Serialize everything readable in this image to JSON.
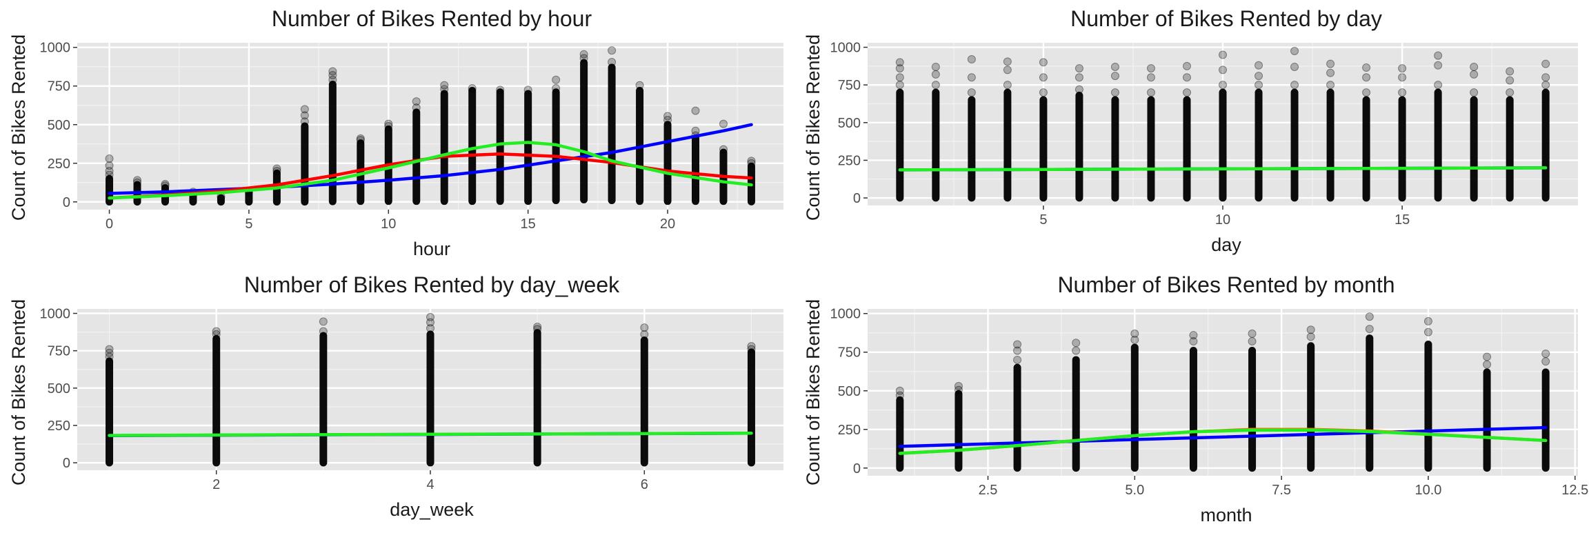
{
  "chart_data": [
    {
      "type": "scatter",
      "title": "Number of Bikes Rented by hour",
      "xlabel": "hour",
      "ylabel": "Count of Bikes Rented",
      "xlim": [
        -1.15,
        24.15
      ],
      "ylim": [
        -50,
        1030
      ],
      "x_ticks": [
        0,
        5,
        10,
        15,
        20
      ],
      "x_tick_labels": [
        "0",
        "5",
        "10",
        "15",
        "20"
      ],
      "y_ticks": [
        0,
        250,
        500,
        750,
        1000
      ],
      "y_tick_labels": [
        "0",
        "250",
        "500",
        "750",
        "1000"
      ],
      "grid": true,
      "background": "#e5e5e5",
      "point_color": "#000000",
      "point_opacity": 0.25,
      "columns": [
        {
          "x": 0,
          "low": 1,
          "high": 150,
          "outliers": [
            175,
            200,
            235,
            280
          ]
        },
        {
          "x": 1,
          "low": 1,
          "high": 110,
          "outliers": [
            125,
            140
          ]
        },
        {
          "x": 2,
          "low": 1,
          "high": 90,
          "outliers": [
            105,
            115
          ]
        },
        {
          "x": 3,
          "low": 1,
          "high": 55,
          "outliers": [
            65
          ]
        },
        {
          "x": 4,
          "low": 1,
          "high": 25,
          "outliers": [
            35
          ]
        },
        {
          "x": 5,
          "low": 1,
          "high": 55,
          "outliers": [
            65
          ]
        },
        {
          "x": 6,
          "low": 1,
          "high": 185,
          "outliers": [
            200,
            215
          ]
        },
        {
          "x": 7,
          "low": 1,
          "high": 490,
          "outliers": [
            520,
            560,
            600
          ]
        },
        {
          "x": 8,
          "low": 3,
          "high": 760,
          "outliers": [
            790,
            820,
            845
          ]
        },
        {
          "x": 9,
          "low": 5,
          "high": 380,
          "outliers": [
            400,
            410
          ]
        },
        {
          "x": 10,
          "low": 5,
          "high": 470,
          "outliers": [
            490,
            505
          ]
        },
        {
          "x": 11,
          "low": 5,
          "high": 580,
          "outliers": [
            610,
            650
          ]
        },
        {
          "x": 12,
          "low": 5,
          "high": 700,
          "outliers": [
            730,
            755
          ]
        },
        {
          "x": 13,
          "low": 5,
          "high": 720,
          "outliers": [
            735
          ]
        },
        {
          "x": 14,
          "low": 5,
          "high": 710,
          "outliers": [
            725
          ]
        },
        {
          "x": 15,
          "low": 5,
          "high": 700,
          "outliers": [
            725
          ]
        },
        {
          "x": 16,
          "low": 10,
          "high": 710,
          "outliers": [
            735,
            790
          ]
        },
        {
          "x": 17,
          "low": 15,
          "high": 900,
          "outliers": [
            930,
            955
          ]
        },
        {
          "x": 18,
          "low": 10,
          "high": 870,
          "outliers": [
            905,
            980
          ]
        },
        {
          "x": 19,
          "low": 5,
          "high": 720,
          "outliers": [
            755
          ]
        },
        {
          "x": 20,
          "low": 5,
          "high": 500,
          "outliers": [
            530,
            555
          ]
        },
        {
          "x": 21,
          "low": 5,
          "high": 410,
          "outliers": [
            430,
            460,
            590
          ]
        },
        {
          "x": 22,
          "low": 5,
          "high": 320,
          "outliers": [
            340,
            505
          ]
        },
        {
          "x": 23,
          "low": 2,
          "high": 230,
          "outliers": [
            250,
            265
          ]
        }
      ],
      "smooth_lines": [
        {
          "color": "#0000ff",
          "x": [
            0,
            2,
            4,
            6,
            8,
            10,
            12,
            14,
            16,
            18,
            20,
            22,
            23
          ],
          "y": [
            55,
            65,
            80,
            95,
            115,
            140,
            170,
            210,
            265,
            320,
            390,
            460,
            500
          ]
        },
        {
          "color": "#ff0000",
          "x": [
            0,
            2,
            4,
            6,
            8,
            10,
            12,
            14,
            16,
            18,
            20,
            22,
            23
          ],
          "y": [
            25,
            45,
            70,
            110,
            170,
            240,
            295,
            310,
            295,
            255,
            200,
            165,
            155
          ]
        },
        {
          "color": "#22ee22",
          "x": [
            0,
            2,
            4,
            6,
            8,
            10,
            12,
            13,
            14,
            15,
            16,
            17,
            18,
            20,
            22,
            23
          ],
          "y": [
            25,
            40,
            60,
            90,
            140,
            220,
            305,
            345,
            375,
            385,
            370,
            325,
            265,
            185,
            130,
            110
          ]
        }
      ]
    },
    {
      "type": "scatter",
      "title": "Number of Bikes Rented by day",
      "xlabel": "day",
      "ylabel": "Count of Bikes Rented",
      "xlim": [
        0.1,
        19.9
      ],
      "ylim": [
        -50,
        1030
      ],
      "x_ticks": [
        5,
        10,
        15
      ],
      "x_tick_labels": [
        "5",
        "10",
        "15"
      ],
      "y_ticks": [
        0,
        250,
        500,
        750,
        1000
      ],
      "y_tick_labels": [
        "0",
        "250",
        "500",
        "750",
        "1000"
      ],
      "grid": true,
      "background": "#e5e5e5",
      "point_color": "#000000",
      "point_opacity": 0.25,
      "columns": [
        {
          "x": 1,
          "low": 1,
          "high": 700,
          "outliers": [
            750,
            800,
            860,
            900
          ]
        },
        {
          "x": 2,
          "low": 1,
          "high": 700,
          "outliers": [
            750,
            820,
            870
          ]
        },
        {
          "x": 3,
          "low": 1,
          "high": 650,
          "outliers": [
            700,
            800,
            920
          ]
        },
        {
          "x": 4,
          "low": 1,
          "high": 700,
          "outliers": [
            750,
            850,
            905
          ]
        },
        {
          "x": 5,
          "low": 1,
          "high": 650,
          "outliers": [
            700,
            800,
            900
          ]
        },
        {
          "x": 6,
          "low": 1,
          "high": 680,
          "outliers": [
            720,
            800,
            860
          ]
        },
        {
          "x": 7,
          "low": 1,
          "high": 650,
          "outliers": [
            700,
            810,
            870
          ]
        },
        {
          "x": 8,
          "low": 1,
          "high": 650,
          "outliers": [
            700,
            800,
            860
          ]
        },
        {
          "x": 9,
          "low": 1,
          "high": 650,
          "outliers": [
            700,
            800,
            875
          ]
        },
        {
          "x": 10,
          "low": 1,
          "high": 700,
          "outliers": [
            750,
            850,
            950
          ]
        },
        {
          "x": 11,
          "low": 1,
          "high": 700,
          "outliers": [
            750,
            810,
            880
          ]
        },
        {
          "x": 12,
          "low": 1,
          "high": 700,
          "outliers": [
            750,
            870,
            975
          ]
        },
        {
          "x": 13,
          "low": 1,
          "high": 700,
          "outliers": [
            750,
            830,
            890
          ]
        },
        {
          "x": 14,
          "low": 1,
          "high": 650,
          "outliers": [
            700,
            800,
            865
          ]
        },
        {
          "x": 15,
          "low": 1,
          "high": 650,
          "outliers": [
            700,
            800,
            860
          ]
        },
        {
          "x": 16,
          "low": 1,
          "high": 700,
          "outliers": [
            750,
            880,
            945
          ]
        },
        {
          "x": 17,
          "low": 1,
          "high": 650,
          "outliers": [
            700,
            820,
            870
          ]
        },
        {
          "x": 18,
          "low": 1,
          "high": 650,
          "outliers": [
            700,
            780,
            840
          ]
        },
        {
          "x": 19,
          "low": 1,
          "high": 700,
          "outliers": [
            750,
            800,
            890
          ]
        }
      ],
      "smooth_lines": [
        {
          "color": "#0000ff",
          "x": [
            1,
            19
          ],
          "y": [
            186,
            200
          ]
        },
        {
          "color": "#22ee22",
          "x": [
            1,
            10,
            19
          ],
          "y": [
            186,
            193,
            200
          ]
        }
      ]
    },
    {
      "type": "scatter",
      "title": "Number of Bikes Rented by day_week",
      "xlabel": "day_week",
      "ylabel": "Count of Bikes Rented",
      "xlim": [
        0.7,
        7.3
      ],
      "ylim": [
        -50,
        1030
      ],
      "x_ticks": [
        2,
        4,
        6
      ],
      "x_tick_labels": [
        "2",
        "4",
        "6"
      ],
      "y_ticks": [
        0,
        250,
        500,
        750,
        1000
      ],
      "y_tick_labels": [
        "0",
        "250",
        "500",
        "750",
        "1000"
      ],
      "grid": true,
      "background": "#e5e5e5",
      "point_color": "#000000",
      "point_opacity": 0.25,
      "columns": [
        {
          "x": 1,
          "low": 1,
          "high": 680,
          "outliers": [
            710,
            735,
            760
          ]
        },
        {
          "x": 2,
          "low": 1,
          "high": 830,
          "outliers": [
            860,
            880
          ]
        },
        {
          "x": 3,
          "low": 1,
          "high": 850,
          "outliers": [
            880,
            945
          ]
        },
        {
          "x": 4,
          "low": 1,
          "high": 860,
          "outliers": [
            900,
            940,
            975
          ]
        },
        {
          "x": 5,
          "low": 1,
          "high": 870,
          "outliers": [
            895,
            910
          ]
        },
        {
          "x": 6,
          "low": 1,
          "high": 820,
          "outliers": [
            860,
            905
          ]
        },
        {
          "x": 7,
          "low": 1,
          "high": 740,
          "outliers": [
            760,
            780
          ]
        }
      ],
      "smooth_lines": [
        {
          "color": "#0000ff",
          "x": [
            1,
            7
          ],
          "y": [
            182,
            198
          ]
        },
        {
          "color": "#22ee22",
          "x": [
            1,
            4,
            7
          ],
          "y": [
            183,
            191,
            198
          ]
        }
      ]
    },
    {
      "type": "scatter",
      "title": "Number of Bikes Rented by month",
      "xlabel": "month",
      "ylabel": "Count of Bikes Rented",
      "xlim": [
        0.45,
        12.55
      ],
      "ylim": [
        -50,
        1030
      ],
      "x_ticks": [
        2.5,
        5,
        7.5,
        10,
        12.5
      ],
      "x_tick_labels": [
        "2.5",
        "5.0",
        "7.5",
        "10.0",
        "12.5"
      ],
      "y_ticks": [
        0,
        250,
        500,
        750,
        1000
      ],
      "y_tick_labels": [
        "0",
        "250",
        "500",
        "750",
        "1000"
      ],
      "grid": true,
      "background": "#e5e5e5",
      "point_color": "#000000",
      "point_opacity": 0.25,
      "columns": [
        {
          "x": 1,
          "low": 1,
          "high": 440,
          "outliers": [
            470,
            500
          ]
        },
        {
          "x": 2,
          "low": 1,
          "high": 480,
          "outliers": [
            505,
            530
          ]
        },
        {
          "x": 3,
          "low": 1,
          "high": 650,
          "outliers": [
            700,
            760,
            800
          ]
        },
        {
          "x": 4,
          "low": 1,
          "high": 700,
          "outliers": [
            760,
            810
          ]
        },
        {
          "x": 5,
          "low": 1,
          "high": 780,
          "outliers": [
            830,
            870
          ]
        },
        {
          "x": 6,
          "low": 1,
          "high": 760,
          "outliers": [
            820,
            860
          ]
        },
        {
          "x": 7,
          "low": 1,
          "high": 760,
          "outliers": [
            820,
            870
          ]
        },
        {
          "x": 8,
          "low": 1,
          "high": 790,
          "outliers": [
            850,
            895
          ]
        },
        {
          "x": 9,
          "low": 1,
          "high": 840,
          "outliers": [
            900,
            980
          ]
        },
        {
          "x": 10,
          "low": 1,
          "high": 800,
          "outliers": [
            880,
            950
          ]
        },
        {
          "x": 11,
          "low": 1,
          "high": 620,
          "outliers": [
            670,
            720
          ]
        },
        {
          "x": 12,
          "low": 1,
          "high": 620,
          "outliers": [
            690,
            740
          ]
        }
      ],
      "smooth_lines": [
        {
          "color": "#0000ff",
          "x": [
            1,
            12
          ],
          "y": [
            140,
            262
          ]
        },
        {
          "color": "#ff6a00",
          "x": [
            1,
            2,
            3,
            4,
            5,
            6,
            7,
            8,
            9,
            10,
            11,
            12
          ],
          "y": [
            95,
            115,
            145,
            178,
            210,
            235,
            250,
            250,
            240,
            220,
            198,
            178
          ]
        },
        {
          "color": "#22ee22",
          "x": [
            1,
            2,
            3,
            4,
            5,
            6,
            7,
            8,
            9,
            10,
            11,
            12
          ],
          "y": [
            95,
            115,
            145,
            178,
            210,
            235,
            245,
            246,
            236,
            218,
            198,
            178
          ]
        }
      ]
    }
  ]
}
